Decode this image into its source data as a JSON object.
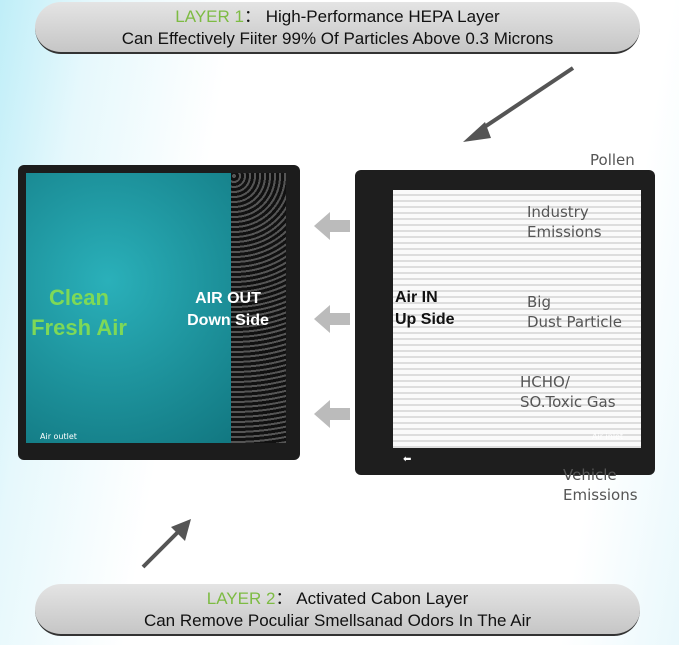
{
  "layer1": {
    "tag": "LAYER 1",
    "sep": "：",
    "title": "High-Performance HEPA Layer",
    "desc": "Can Effectively Fiiter 99% Of Particles Above 0.3 Microns"
  },
  "layer2": {
    "tag": "LAYER 2",
    "sep": "：",
    "title": "Activated Cabon Layer",
    "desc": "Can Remove Poculiar Smellsanad Odors In The Air"
  },
  "left_filter": {
    "clean": "Clean",
    "fresh": "Fresh Air",
    "air_out": "AIR OUT",
    "down_side": "Down Side",
    "outlet": "Air outlet"
  },
  "right_filter": {
    "air_in": "Air IN",
    "up_side": "Up Side",
    "inlet": "Air inlet"
  },
  "pollutants": {
    "pollen": "Pollen",
    "industry1": "Industry",
    "industry2": "Emissions",
    "dust1": "Big",
    "dust2": "Dust Particle",
    "gas1": "HCHO/",
    "gas2": "SO.Toxic Gas",
    "vehicle1": "Vehicle",
    "vehicle2": "Emissions"
  },
  "colors": {
    "accent_green": "#7dbb43",
    "teal": "#1aa6b0"
  }
}
